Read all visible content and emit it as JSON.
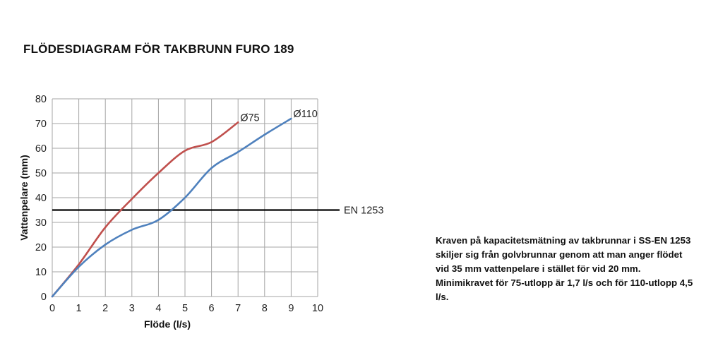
{
  "chart_data": {
    "type": "line",
    "title": "FLÖDESDIAGRAM FÖR TAKBRUNN FURO 189",
    "xlabel": "Flöde (l/s)",
    "ylabel": "Vattenpelare (mm)",
    "xlim": [
      0,
      10
    ],
    "ylim": [
      0,
      80
    ],
    "x_ticks": [
      "0",
      "1",
      "2",
      "3",
      "4",
      "5",
      "6",
      "7",
      "8",
      "9",
      "10"
    ],
    "y_ticks": [
      "0",
      "10",
      "20",
      "30",
      "40",
      "50",
      "60",
      "70",
      "80"
    ],
    "grid": true,
    "series": [
      {
        "name": "Ø75",
        "color": "#c0504d",
        "x": [
          0,
          1,
          2,
          3,
          4,
          5,
          6,
          7
        ],
        "y": [
          0,
          13,
          28,
          39.5,
          50,
          59,
          62.5,
          70.5
        ]
      },
      {
        "name": "Ø110",
        "color": "#4f81bd",
        "x": [
          0,
          1,
          2,
          3,
          4,
          5,
          6,
          7,
          8,
          9
        ],
        "y": [
          0,
          12,
          21,
          27,
          31,
          40,
          52,
          58.5,
          65.5,
          72
        ]
      }
    ],
    "reference_lines": [
      {
        "label": "EN 1253",
        "y": 35,
        "color": "#000000"
      }
    ]
  },
  "note": "Kraven på kapacitetsmätning av takbrunnar i SS-EN 1253 skiljer sig från golvbrunnar genom att man anger flödet vid 35 mm vattenpelare i stället för vid 20 mm. Minimikravet för 75-utlopp är 1,7 l/s och för 110-utlopp 4,5 l/s."
}
